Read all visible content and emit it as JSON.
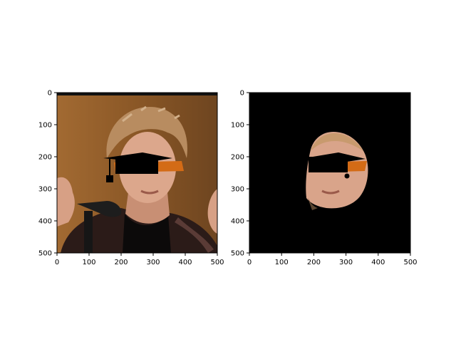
{
  "panels": [
    {
      "id": "left",
      "content": "photo",
      "x_ticks": [
        "0",
        "100",
        "200",
        "300",
        "400",
        "500"
      ],
      "y_ticks": [
        "0",
        "100",
        "200",
        "300",
        "400",
        "500"
      ],
      "x_tick_values": [
        0,
        100,
        200,
        300,
        400,
        500
      ],
      "y_tick_values": [
        0,
        100,
        200,
        300,
        400,
        500
      ],
      "xlim": [
        0,
        500
      ],
      "ylim": [
        500,
        0
      ]
    },
    {
      "id": "right",
      "content": "masked-face",
      "x_ticks": [
        "0",
        "100",
        "200",
        "300",
        "400",
        "500"
      ],
      "y_ticks": [
        "0",
        "100",
        "200",
        "300",
        "400",
        "500"
      ],
      "x_tick_values": [
        0,
        100,
        200,
        300,
        400,
        500
      ],
      "y_tick_values": [
        0,
        100,
        200,
        300,
        400,
        500
      ],
      "xlim": [
        0,
        500
      ],
      "ylim": [
        500,
        0
      ]
    }
  ],
  "colors": {
    "background": "#000000",
    "photo_backdrop": "#8a5a28",
    "hair": "#b98d62",
    "skin": "#d9a48a",
    "jacket": "#2a1a17",
    "glasses": "#d36b16"
  }
}
